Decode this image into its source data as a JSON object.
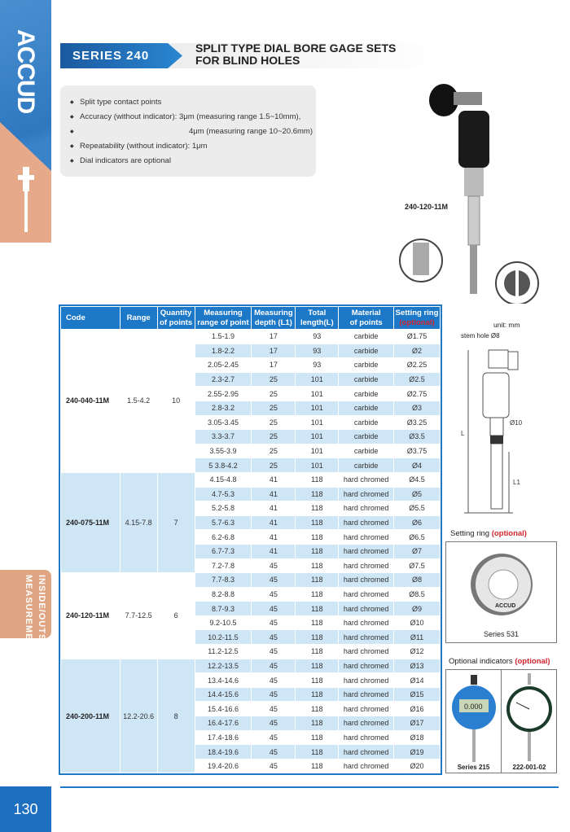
{
  "brand": "ACCUD",
  "side_tab": [
    "INSIDE/OUTSIDE",
    "MEASUREMENT"
  ],
  "page_number": "130",
  "series": "SERIES 240",
  "title": [
    "SPLIT TYPE DIAL BORE GAGE SETS",
    "FOR BLIND HOLES"
  ],
  "features": [
    "Split type contact points",
    "Accuracy (without indicator): 3μm (measuring range 1.5~10mm),",
    "4μm (measuring range 10~20.6mm)",
    "Repeatability (without indicator): 1μm",
    "Dial indicators are optional"
  ],
  "model_label": "240-120-11M",
  "unit": "unit: mm",
  "drawing": {
    "stem_hole": "stem hole Ø8",
    "diameter": "Ø10",
    "L": "L",
    "L1": "L1"
  },
  "table": {
    "headers": [
      [
        "Code"
      ],
      [
        "Range"
      ],
      [
        "Quantity",
        "of points"
      ],
      [
        "Measuring",
        "range of point"
      ],
      [
        "Measuring",
        "depth (L1)"
      ],
      [
        "Total",
        "length(L)"
      ],
      [
        "Material",
        "of points"
      ],
      [
        "Setting ring",
        "(optional)"
      ]
    ],
    "groups": [
      {
        "code": "240-040-11M",
        "range": "1.5-4.2",
        "qty": "10",
        "rows": [
          [
            "1.5-1.9",
            "17",
            "93",
            "carbide",
            "Ø1.75"
          ],
          [
            "1.8-2.2",
            "17",
            "93",
            "carbide",
            "Ø2"
          ],
          [
            "2.05-2.45",
            "17",
            "93",
            "carbide",
            "Ø2.25"
          ],
          [
            "2.3-2.7",
            "25",
            "101",
            "carbide",
            "Ø2.5"
          ],
          [
            "2.55-2.95",
            "25",
            "101",
            "carbide",
            "Ø2.75"
          ],
          [
            "2.8-3.2",
            "25",
            "101",
            "carbide",
            "Ø3"
          ],
          [
            "3.05-3.45",
            "25",
            "101",
            "carbide",
            "Ø3.25"
          ],
          [
            "3.3-3.7",
            "25",
            "101",
            "carbide",
            "Ø3.5"
          ],
          [
            "3.55-3.9",
            "25",
            "101",
            "carbide",
            "Ø3.75"
          ],
          [
            "5 3.8-4.2",
            "25",
            "101",
            "carbide",
            "Ø4"
          ]
        ]
      },
      {
        "code": "240-075-11M",
        "range": "4.15-7.8",
        "qty": "7",
        "rows": [
          [
            "4.15-4.8",
            "41",
            "118",
            "hard chromed",
            "Ø4.5"
          ],
          [
            "4.7-5.3",
            "41",
            "118",
            "hard chromed",
            "Ø5"
          ],
          [
            "5.2-5.8",
            "41",
            "118",
            "hard chromed",
            "Ø5.5"
          ],
          [
            "5.7-6.3",
            "41",
            "118",
            "hard chromed",
            "Ø6"
          ],
          [
            "6.2-6.8",
            "41",
            "118",
            "hard chromed",
            "Ø6.5"
          ],
          [
            "6.7-7.3",
            "41",
            "118",
            "hard chromed",
            "Ø7"
          ],
          [
            "7.2-7.8",
            "45",
            "118",
            "hard chromed",
            "Ø7.5"
          ]
        ]
      },
      {
        "code": "240-120-11M",
        "range": "7.7-12.5",
        "qty": "6",
        "rows": [
          [
            "7.7-8.3",
            "45",
            "118",
            "hard chromed",
            "Ø8"
          ],
          [
            "8.2-8.8",
            "45",
            "118",
            "hard chromed",
            "Ø8.5"
          ],
          [
            "8.7-9.3",
            "45",
            "118",
            "hard chromed",
            "Ø9"
          ],
          [
            "9.2-10.5",
            "45",
            "118",
            "hard chromed",
            "Ø10"
          ],
          [
            "10.2-11.5",
            "45",
            "118",
            "hard chromed",
            "Ø11"
          ],
          [
            "11.2-12.5",
            "45",
            "118",
            "hard chromed",
            "Ø12"
          ]
        ]
      },
      {
        "code": "240-200-11M",
        "range": "12.2-20.6",
        "qty": "8",
        "rows": [
          [
            "12.2-13.5",
            "45",
            "118",
            "hard chromed",
            "Ø13"
          ],
          [
            "13.4-14.6",
            "45",
            "118",
            "hard chromed",
            "Ø14"
          ],
          [
            "14.4-15.6",
            "45",
            "118",
            "hard chromed",
            "Ø15"
          ],
          [
            "15.4-16.6",
            "45",
            "118",
            "hard chromed",
            "Ø16"
          ],
          [
            "16.4-17.6",
            "45",
            "118",
            "hard chromed",
            "Ø17"
          ],
          [
            "17.4-18.6",
            "45",
            "118",
            "hard chromed",
            "Ø18"
          ],
          [
            "18.4-19.6",
            "45",
            "118",
            "hard chromed",
            "Ø19"
          ],
          [
            "19.4-20.6",
            "45",
            "118",
            "hard chromed",
            "Ø20"
          ]
        ]
      }
    ]
  },
  "setting_ring": {
    "title": "Setting ring",
    "optional": "(optional)",
    "caption": "Series 531",
    "ring_text": "ACCUD"
  },
  "indicators": {
    "title": "Optional indicators",
    "optional": "(optional)",
    "captions": [
      "Series 215",
      "222-001-02"
    ],
    "digital_reading": "0.000"
  },
  "colors": {
    "accent": "#1e78c8",
    "stripe": "#cfe6f7",
    "side_peach": "#e0a683",
    "optional_red": "#d0242c"
  }
}
